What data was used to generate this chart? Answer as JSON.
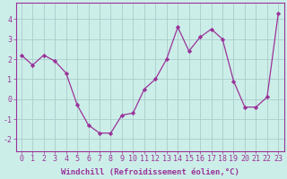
{
  "x": [
    0,
    1,
    2,
    3,
    4,
    5,
    6,
    7,
    8,
    9,
    10,
    11,
    12,
    13,
    14,
    15,
    16,
    17,
    18,
    19,
    20,
    21,
    22,
    23
  ],
  "y": [
    2.2,
    1.7,
    2.2,
    1.9,
    1.3,
    -0.3,
    -1.3,
    -1.7,
    -1.7,
    -0.8,
    -0.7,
    0.5,
    1.0,
    2.0,
    3.6,
    2.4,
    3.1,
    3.5,
    3.0,
    0.9,
    -0.4,
    -0.4,
    0.1,
    4.3
  ],
  "line_color": "#993399",
  "marker": "D",
  "marker_size": 2.2,
  "bg_color": "#cceee8",
  "grid_color": "#aacccc",
  "xlabel": "Windchill (Refroidissement éolien,°C)",
  "xlabel_fontsize": 6.5,
  "tick_fontsize": 6.0,
  "yticks": [
    -2,
    -1,
    0,
    1,
    2,
    3,
    4
  ],
  "ylim": [
    -2.6,
    4.8
  ],
  "xlim": [
    -0.5,
    23.5
  ]
}
